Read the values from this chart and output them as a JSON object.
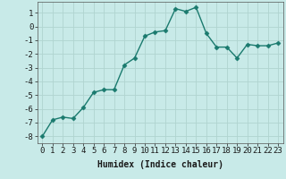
{
  "x": [
    0,
    1,
    2,
    3,
    4,
    5,
    6,
    7,
    8,
    9,
    10,
    11,
    12,
    13,
    14,
    15,
    16,
    17,
    18,
    19,
    20,
    21,
    22,
    23
  ],
  "y": [
    -8.0,
    -6.8,
    -6.6,
    -6.7,
    -5.9,
    -4.8,
    -4.6,
    -4.6,
    -2.8,
    -2.3,
    -0.7,
    -0.4,
    -0.3,
    1.3,
    1.1,
    1.4,
    -0.5,
    -1.5,
    -1.5,
    -2.3,
    -1.3,
    -1.4,
    -1.4,
    -1.2
  ],
  "xlabel": "Humidex (Indice chaleur)",
  "ylim": [
    -8.5,
    1.8
  ],
  "xlim": [
    -0.5,
    23.5
  ],
  "yticks": [
    1,
    0,
    -1,
    -2,
    -3,
    -4,
    -5,
    -6,
    -7,
    -8
  ],
  "xticks": [
    0,
    1,
    2,
    3,
    4,
    5,
    6,
    7,
    8,
    9,
    10,
    11,
    12,
    13,
    14,
    15,
    16,
    17,
    18,
    19,
    20,
    21,
    22,
    23
  ],
  "line_color": "#1a7a6e",
  "marker": "D",
  "marker_size": 2.5,
  "bg_color": "#c8eae8",
  "grid_color": "#b0d4d0",
  "axis_color": "#555555",
  "xlabel_fontsize": 7,
  "tick_fontsize": 6.5,
  "line_width": 1.0
}
